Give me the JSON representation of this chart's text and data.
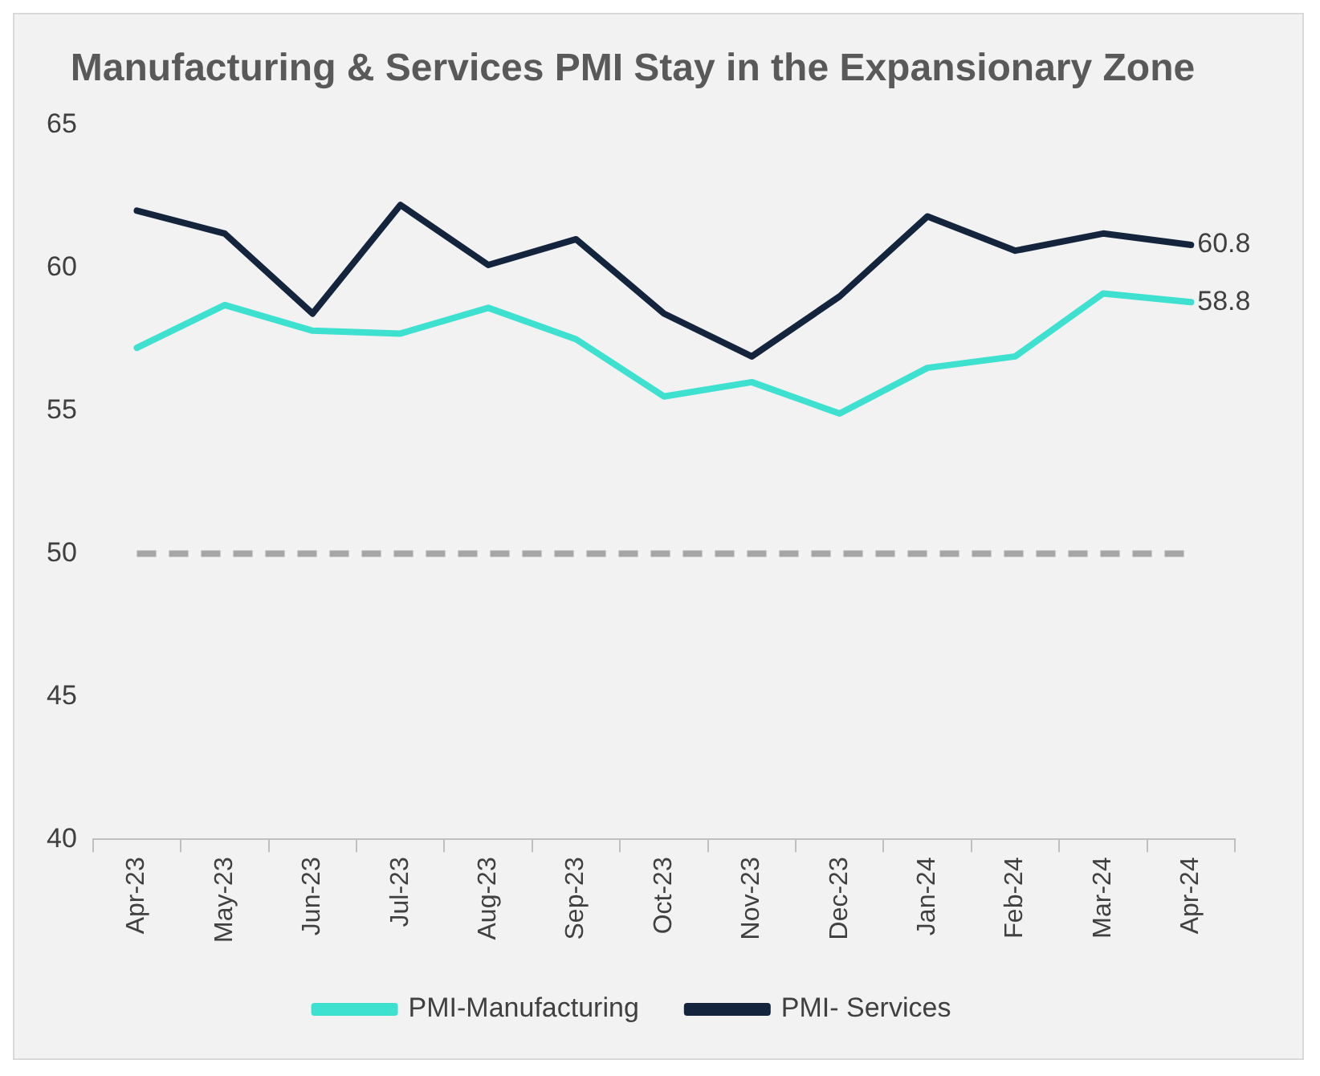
{
  "chart_data": {
    "type": "line",
    "title": "Manufacturing & Services PMI Stay in the Expansionary Zone",
    "categories": [
      "Apr-23",
      "May-23",
      "Jun-23",
      "Jul-23",
      "Aug-23",
      "Sep-23",
      "Oct-23",
      "Nov-23",
      "Dec-23",
      "Jan-24",
      "Feb-24",
      "Mar-24",
      "Apr-24"
    ],
    "series": [
      {
        "name": "PMI-Manufacturing",
        "color": "#3ee0cf",
        "values": [
          57.2,
          58.7,
          57.8,
          57.7,
          58.6,
          57.5,
          55.5,
          56.0,
          54.9,
          56.5,
          56.9,
          59.1,
          58.8
        ],
        "value_labels": [
          null,
          null,
          null,
          null,
          null,
          null,
          null,
          null,
          null,
          null,
          null,
          null,
          "58.8"
        ]
      },
      {
        "name": "PMI- Services",
        "color": "#14243d",
        "values": [
          62.0,
          61.2,
          58.4,
          62.2,
          60.1,
          61.0,
          58.4,
          56.9,
          59.0,
          61.8,
          60.6,
          61.2,
          60.8
        ],
        "value_labels": [
          null,
          null,
          null,
          null,
          null,
          null,
          null,
          null,
          null,
          null,
          null,
          null,
          "60.8"
        ]
      }
    ],
    "ylim": [
      40,
      65
    ],
    "yticks": [
      40,
      45,
      50,
      55,
      60,
      65
    ],
    "grid": false,
    "legend": "bottom",
    "marker": "none",
    "line_style": "solid",
    "ref_lines": [
      {
        "axis": "y",
        "value": 50,
        "color": "#a6a6a6",
        "line_style": "dashed"
      }
    ]
  }
}
